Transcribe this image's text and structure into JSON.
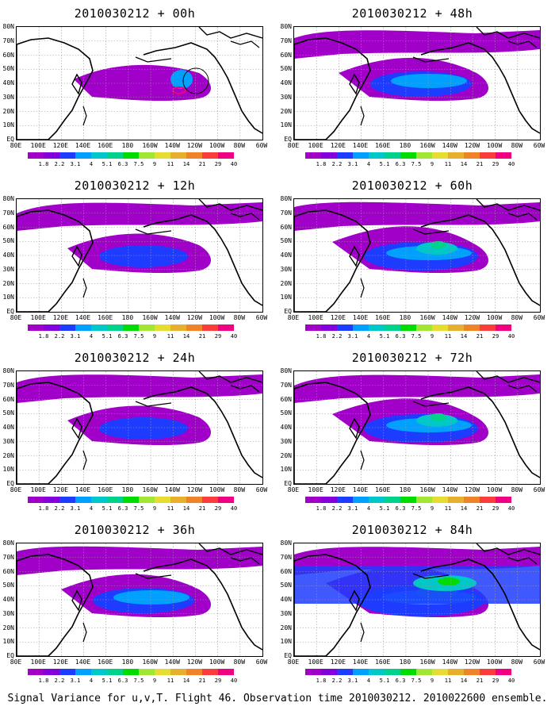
{
  "panels": [
    {
      "title": "2010030212 + 00h",
      "intensity": 1
    },
    {
      "title": "2010030212 + 48h",
      "intensity": 3
    },
    {
      "title": "2010030212 + 12h",
      "intensity": 2
    },
    {
      "title": "2010030212 + 60h",
      "intensity": 4
    },
    {
      "title": "2010030212 + 24h",
      "intensity": 2
    },
    {
      "title": "2010030212 + 72h",
      "intensity": 4
    },
    {
      "title": "2010030212 + 36h",
      "intensity": 3
    },
    {
      "title": "2010030212 + 84h",
      "intensity": 5
    }
  ],
  "lat_labels": [
    "80N",
    "70N",
    "60N",
    "50N",
    "40N",
    "30N",
    "20N",
    "10N",
    "EQ"
  ],
  "lon_labels": [
    "80E",
    "100E",
    "120E",
    "140E",
    "160E",
    "180",
    "160W",
    "140W",
    "120W",
    "100W",
    "80W",
    "60W"
  ],
  "colorbar": {
    "levels": [
      "1.8",
      "2.2",
      "3.1",
      "4",
      "5.1",
      "6.3",
      "7.5",
      "9",
      "11",
      "14",
      "21",
      "29",
      "40"
    ],
    "colors": [
      "#a000c8",
      "#8200dc",
      "#1e3cff",
      "#00a0ff",
      "#00c8c8",
      "#00d28c",
      "#00dc00",
      "#a0e632",
      "#e6dc32",
      "#e6af2d",
      "#f08228",
      "#fa3c3c",
      "#f00082"
    ]
  },
  "footer": "Signal Variance for u,v,T. Flight 46. Observation time 2010030212. 2010022600 ensemble."
}
